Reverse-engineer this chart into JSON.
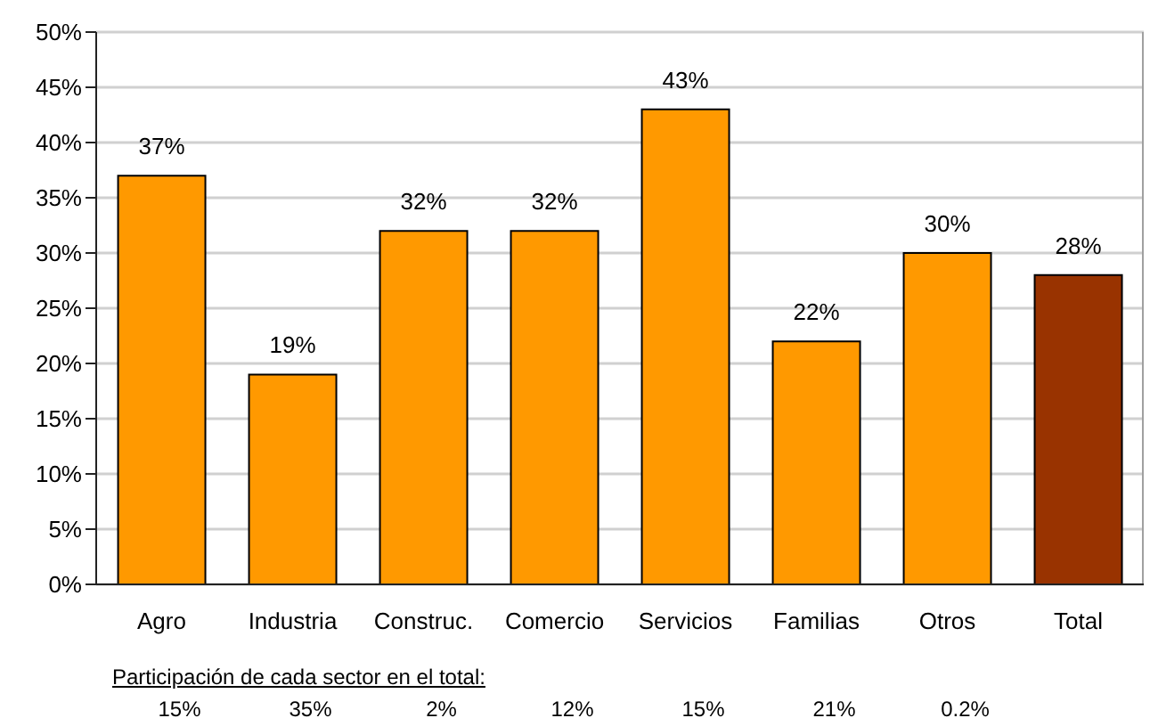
{
  "chart_data": {
    "type": "bar",
    "categories": [
      "Agro",
      "Industria",
      "Construc.",
      "Comercio",
      "Servicios",
      "Familias",
      "Otros",
      "Total"
    ],
    "values": [
      37,
      19,
      32,
      32,
      43,
      22,
      30,
      28
    ],
    "colors": [
      "#ff9900",
      "#ff9900",
      "#ff9900",
      "#ff9900",
      "#ff9900",
      "#ff9900",
      "#ff9900",
      "#993300"
    ],
    "value_labels": [
      "37%",
      "19%",
      "32%",
      "32%",
      "43%",
      "22%",
      "30%",
      "28%"
    ],
    "ylim": [
      0,
      50
    ],
    "yticks": [
      {
        "value": 0,
        "label": "0%"
      },
      {
        "value": 5,
        "label": "5%"
      },
      {
        "value": 10,
        "label": "10%"
      },
      {
        "value": 15,
        "label": "15%"
      },
      {
        "value": 20,
        "label": "20%"
      },
      {
        "value": 25,
        "label": "25%"
      },
      {
        "value": 30,
        "label": "30%"
      },
      {
        "value": 35,
        "label": "35%"
      },
      {
        "value": 40,
        "label": "40%"
      },
      {
        "value": 45,
        "label": "45%"
      },
      {
        "value": 50,
        "label": "50%"
      }
    ],
    "grid": "y",
    "annotations": [
      "Participación de cada sector en el total:",
      "15%",
      "35%",
      "2%",
      "12%",
      "15%",
      "21%",
      "0.2%"
    ]
  }
}
